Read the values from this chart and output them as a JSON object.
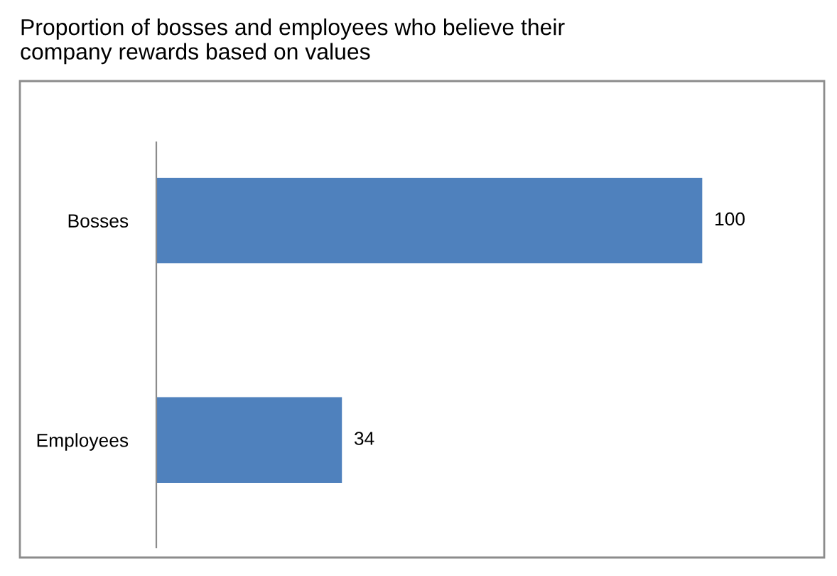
{
  "chart_data": {
    "type": "bar",
    "orientation": "horizontal",
    "title": "Proportion of bosses and employees who believe their\ncompany rewards based on values",
    "categories": [
      "Bosses",
      "Employees"
    ],
    "values": [
      100,
      34
    ],
    "color": "#4f81bd",
    "data_labels": true,
    "tick_labels": "y",
    "grid": false,
    "legend": false
  }
}
